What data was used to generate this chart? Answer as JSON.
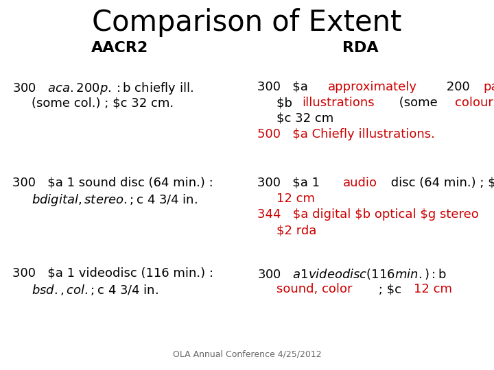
{
  "title": "Comparison of Extent",
  "bg_color": "#ffffff",
  "black": "#000000",
  "red": "#cc0000",
  "gray": "#666666",
  "header_left": "AACR2",
  "header_right": "RDA",
  "footer": "OLA Annual Conference 4/25/2012",
  "title_fontsize": 30,
  "header_fontsize": 16,
  "body_fontsize": 13,
  "footer_fontsize": 9
}
